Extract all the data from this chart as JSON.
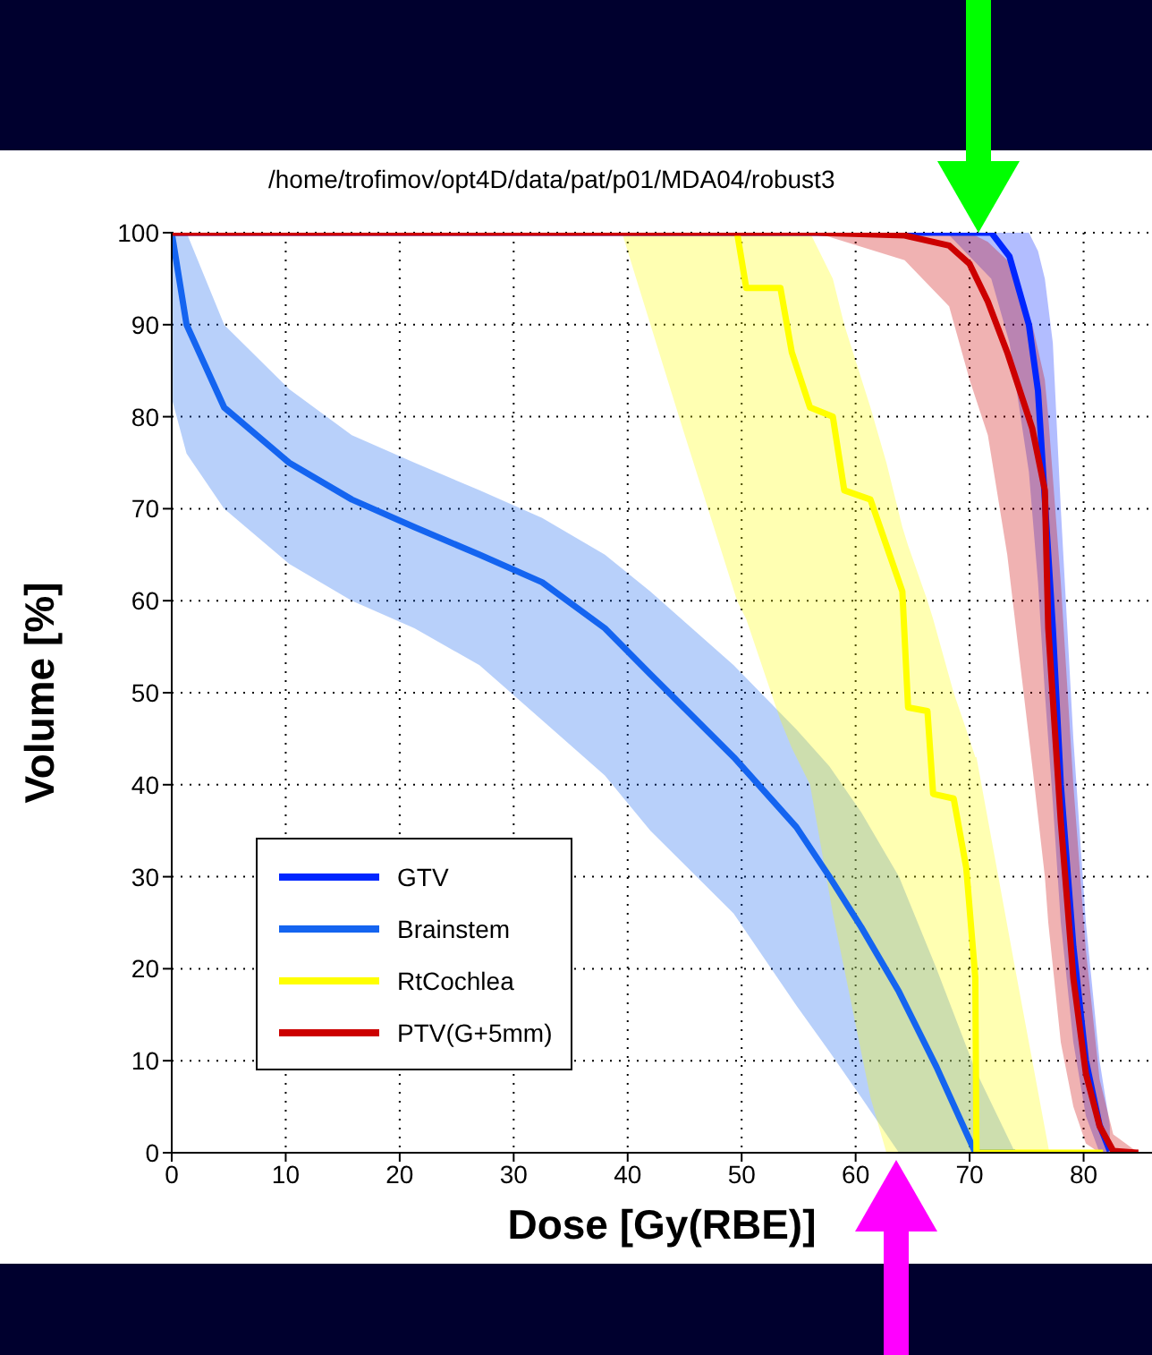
{
  "chart_data": {
    "type": "line",
    "title": "/home/trofimov/opt4D/data/pat/p01/MDA04/robust3",
    "xlabel": "Dose [Gy(RBE)]",
    "ylabel": "Volume [%]",
    "xlim": [
      0,
      86
    ],
    "ylim": [
      0,
      100
    ],
    "xticks": [
      0,
      10,
      20,
      30,
      40,
      50,
      60,
      70,
      80
    ],
    "yticks": [
      0,
      10,
      20,
      30,
      40,
      50,
      60,
      70,
      80,
      90,
      100
    ],
    "grid": true,
    "legend": "bottom left",
    "marker": "none",
    "line_style": "solid",
    "series": [
      {
        "name": "GTV",
        "color": "#0026ff",
        "x": [
          0,
          68,
          71.9,
          73.5,
          75.2,
          76,
          76.6,
          77.3,
          78,
          79.1,
          80.2,
          81.4,
          82.3
        ],
        "values": [
          100,
          100,
          100,
          97.4,
          90,
          82.8,
          71,
          57,
          40,
          22.4,
          10,
          3,
          0.2
        ],
        "lower": [
          100,
          100,
          95,
          88,
          74,
          62,
          50,
          38,
          25,
          12,
          4,
          0,
          0
        ],
        "upper": [
          100,
          100,
          100,
          100,
          100,
          98,
          95,
          88,
          70,
          45,
          25,
          10,
          3
        ]
      },
      {
        "name": "Brainstem",
        "color": "#1464f0",
        "x": [
          0,
          1.3,
          4.6,
          10.3,
          15.8,
          21.3,
          27,
          32.5,
          38,
          42,
          49.3,
          54.8,
          57.7,
          60.5,
          63.8,
          67.1,
          70.5,
          74
        ],
        "values": [
          100,
          90,
          81,
          75,
          71,
          68,
          65,
          62,
          57,
          52,
          43,
          35.4,
          30,
          24.5,
          17.5,
          9.3,
          0,
          0
        ],
        "lower": [
          82,
          76,
          70,
          64,
          60,
          57,
          53,
          47,
          41,
          35,
          26,
          16,
          11,
          6,
          0,
          0,
          0,
          0
        ],
        "upper": [
          100,
          100,
          90,
          83,
          78,
          75,
          72,
          69,
          65,
          61,
          53,
          46,
          42,
          37,
          30,
          20,
          9,
          0
        ]
      },
      {
        "name": "RtCochlea",
        "color": "#ffff00",
        "x": [
          39.5,
          44.5,
          49.6,
          50.4,
          53.4,
          54.4,
          56,
          58,
          59,
          61.3,
          62.7,
          64.1,
          64.6,
          66.3,
          66.8,
          68.6,
          69.7,
          70.5,
          70.6,
          74,
          77,
          81.7
        ],
        "values": [
          null,
          null,
          100,
          94,
          94,
          87,
          81,
          80,
          72,
          71,
          66,
          61,
          48.4,
          48,
          39,
          38.5,
          31,
          19,
          0,
          0,
          0,
          0
        ],
        "lower": [
          100,
          80,
          60,
          58,
          47,
          44,
          40,
          26,
          20,
          6,
          0,
          0,
          0,
          0,
          0,
          0,
          0,
          0,
          0,
          0,
          0,
          0
        ],
        "upper": [
          100,
          100,
          100,
          100,
          100,
          100,
          100,
          95,
          90,
          81,
          75,
          68,
          66,
          60,
          58,
          50,
          46,
          43,
          43,
          20,
          0,
          0
        ]
      },
      {
        "name": "PTV(G+5mm)",
        "color": "#cc0000",
        "x": [
          0,
          56.5,
          64.3,
          68.2,
          70,
          71.6,
          73.3,
          75.5,
          76.6,
          76.9,
          78,
          79.1,
          80.2,
          81.4,
          82.6,
          84.8
        ],
        "values": [
          100,
          100,
          99.7,
          98.6,
          96.6,
          92.5,
          87,
          78.7,
          72,
          57,
          36,
          19,
          8.6,
          2.9,
          0.2,
          0
        ],
        "lower": [
          100,
          100,
          97,
          92,
          84,
          78,
          65,
          42,
          30,
          25,
          12,
          5,
          1,
          0,
          0,
          0
        ],
        "upper": [
          100,
          100,
          100,
          100,
          100,
          99,
          97,
          90,
          84,
          80,
          62,
          40,
          22,
          8,
          2,
          0
        ]
      }
    ]
  }
}
